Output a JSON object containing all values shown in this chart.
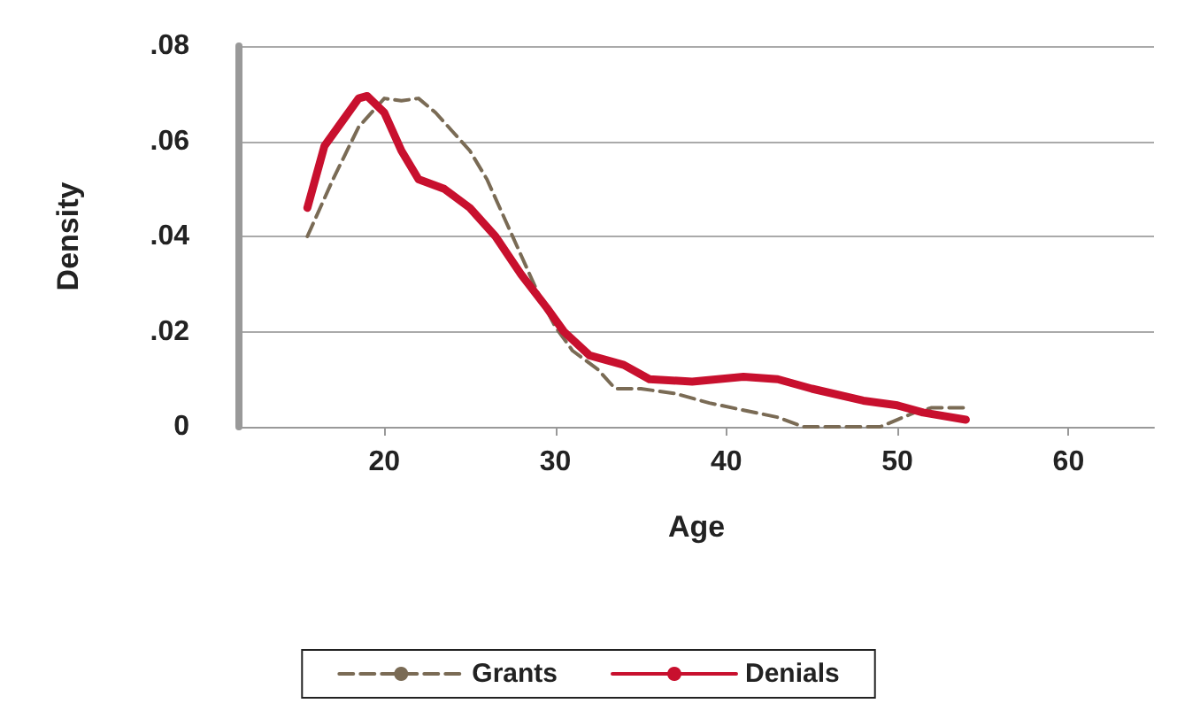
{
  "chart_data": {
    "type": "line",
    "xlabel": "Age",
    "ylabel": "Density",
    "xlim": [
      11.5,
      65
    ],
    "xticks": [
      20,
      30,
      40,
      50,
      60
    ],
    "ylim": [
      0,
      0.08
    ],
    "yticks": [
      {
        "value": 0,
        "label": "0"
      },
      {
        "value": 0.02,
        "label": ".02"
      },
      {
        "value": 0.04,
        "label": ".04"
      },
      {
        "value": 0.06,
        "label": ".06"
      },
      {
        "value": 0.08,
        "label": ".08"
      }
    ],
    "grid": "y",
    "legend": "bottom",
    "marker": "none",
    "series": [
      {
        "name": "Grants",
        "color": "#7a6b55",
        "line_style": "dashed",
        "x": [
          15.5,
          17,
          18.5,
          20,
          21,
          22,
          23,
          24,
          25,
          26,
          27,
          28,
          29,
          30,
          31,
          32.5,
          33.5,
          35,
          37,
          39,
          41,
          43,
          44.5,
          49,
          51,
          52,
          54
        ],
        "values": [
          0.04,
          0.052,
          0.063,
          0.069,
          0.0685,
          0.069,
          0.066,
          0.062,
          0.058,
          0.052,
          0.044,
          0.036,
          0.028,
          0.021,
          0.016,
          0.012,
          0.008,
          0.008,
          0.007,
          0.005,
          0.0035,
          0.002,
          0,
          0,
          0.003,
          0.004,
          0.004
        ]
      },
      {
        "name": "Denials",
        "color": "#c8102e",
        "line_style": "solid",
        "x": [
          15.5,
          16.5,
          17.5,
          18.5,
          19,
          20,
          21,
          22,
          23.5,
          25,
          26.5,
          28,
          29.5,
          30.5,
          32,
          34,
          35.5,
          38,
          41,
          43,
          45,
          48,
          50,
          51.5,
          54
        ],
        "values": [
          0.046,
          0.059,
          0.064,
          0.069,
          0.0695,
          0.066,
          0.058,
          0.052,
          0.05,
          0.046,
          0.04,
          0.032,
          0.025,
          0.02,
          0.015,
          0.013,
          0.01,
          0.0095,
          0.0105,
          0.01,
          0.008,
          0.0055,
          0.0045,
          0.003,
          0.0015
        ]
      }
    ]
  }
}
